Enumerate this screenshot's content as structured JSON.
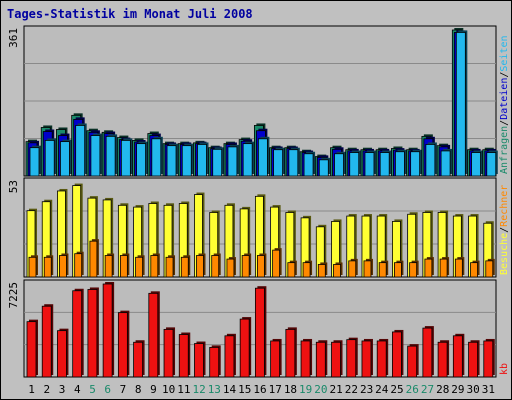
{
  "title": "Tages-Statistik im Monat Juli 2008",
  "colors": {
    "background": "#c0c0c0",
    "plot_bg": "#bcbcbc",
    "grid": "#8a8a8a",
    "title": "#0000a0",
    "anfragen": "#1a8a6a",
    "dateien": "#0000cc",
    "seiten": "#22b8ee",
    "besuche": "#ffff33",
    "rechner": "#ff8800",
    "kb": "#ee1111",
    "weekend_label": "#1a8a6a",
    "weekday_label": "#000000"
  },
  "chart_data": [
    {
      "type": "bar",
      "panel": "top",
      "ymax_label": "361",
      "ylim": [
        0,
        361
      ],
      "legend": [
        {
          "text": "Anfragen",
          "color": "#1a8a6a"
        },
        {
          "text": "Dateien",
          "color": "#0000cc"
        },
        {
          "text": "Seiten",
          "color": "#22b8ee"
        }
      ],
      "series": [
        {
          "name": "Anfragen",
          "color": "#1a8a6a",
          "values": [
            85,
            120,
            115,
            150,
            112,
            108,
            95,
            88,
            105,
            80,
            80,
            82,
            70,
            80,
            90,
            125,
            70,
            70,
            60,
            48,
            70,
            65,
            65,
            65,
            68,
            65,
            98,
            75,
            361,
            65,
            65
          ]
        },
        {
          "name": "Dateien",
          "color": "#0000cc",
          "values": [
            82,
            110,
            100,
            140,
            108,
            105,
            90,
            84,
            100,
            78,
            78,
            80,
            68,
            78,
            86,
            112,
            68,
            68,
            58,
            46,
            66,
            62,
            62,
            62,
            64,
            62,
            92,
            72,
            355,
            62,
            62
          ]
        },
        {
          "name": "Seiten",
          "color": "#22b8ee",
          "values": [
            70,
            88,
            85,
            125,
            100,
            98,
            88,
            80,
            92,
            75,
            75,
            78,
            66,
            72,
            80,
            92,
            65,
            65,
            55,
            40,
            55,
            58,
            58,
            58,
            60,
            60,
            78,
            62,
            355,
            58,
            58
          ]
        }
      ]
    },
    {
      "type": "bar",
      "panel": "middle",
      "ymax_label": "53",
      "ylim": [
        0,
        53
      ],
      "legend": [
        {
          "text": "Besuche",
          "color": "#ffff33"
        },
        {
          "text": "Rechner",
          "color": "#ff8800"
        }
      ],
      "series": [
        {
          "name": "Besuche",
          "color": "#ffff33",
          "values": [
            37,
            42,
            48,
            51,
            44,
            43,
            40,
            39,
            41,
            40,
            41,
            46,
            36,
            40,
            38,
            45,
            39,
            36,
            33,
            28,
            31,
            34,
            34,
            34,
            31,
            35,
            36,
            36,
            34,
            34,
            30
          ]
        },
        {
          "name": "Rechner",
          "color": "#ff8800",
          "values": [
            11,
            11,
            12,
            13,
            20,
            12,
            12,
            11,
            12,
            11,
            11,
            12,
            12,
            10,
            12,
            12,
            15,
            8,
            8,
            7,
            7,
            9,
            9,
            8,
            8,
            8,
            10,
            10,
            10,
            8,
            9
          ]
        }
      ]
    },
    {
      "type": "bar",
      "panel": "bottom",
      "ymax_label": "7225",
      "ylim": [
        0,
        7225
      ],
      "legend": [
        {
          "text": "kb",
          "color": "#ee1111"
        }
      ],
      "series": [
        {
          "name": "kb",
          "color": "#ee1111",
          "values": [
            4300,
            5500,
            3600,
            6700,
            6800,
            7225,
            5000,
            2700,
            6500,
            3700,
            3300,
            2600,
            2300,
            3200,
            4500,
            6900,
            2800,
            3700,
            2800,
            2700,
            2700,
            2900,
            2800,
            2800,
            3500,
            2400,
            3800,
            2700,
            3200,
            2700,
            2800
          ]
        }
      ]
    }
  ],
  "x_labels": [
    {
      "text": "1",
      "weekend": false
    },
    {
      "text": "2",
      "weekend": false
    },
    {
      "text": "3",
      "weekend": false
    },
    {
      "text": "4",
      "weekend": false
    },
    {
      "text": "5",
      "weekend": true
    },
    {
      "text": "6",
      "weekend": true
    },
    {
      "text": "7",
      "weekend": false
    },
    {
      "text": "8",
      "weekend": false
    },
    {
      "text": "9",
      "weekend": false
    },
    {
      "text": "10",
      "weekend": false
    },
    {
      "text": "11",
      "weekend": false
    },
    {
      "text": "12",
      "weekend": true
    },
    {
      "text": "13",
      "weekend": true
    },
    {
      "text": "14",
      "weekend": false
    },
    {
      "text": "15",
      "weekend": false
    },
    {
      "text": "16",
      "weekend": false
    },
    {
      "text": "17",
      "weekend": false
    },
    {
      "text": "18",
      "weekend": false
    },
    {
      "text": "19",
      "weekend": true
    },
    {
      "text": "20",
      "weekend": true
    },
    {
      "text": "21",
      "weekend": false
    },
    {
      "text": "22",
      "weekend": false
    },
    {
      "text": "23",
      "weekend": false
    },
    {
      "text": "24",
      "weekend": false
    },
    {
      "text": "25",
      "weekend": false
    },
    {
      "text": "26",
      "weekend": true
    },
    {
      "text": "27",
      "weekend": true
    },
    {
      "text": "28",
      "weekend": false
    },
    {
      "text": "29",
      "weekend": false
    },
    {
      "text": "30",
      "weekend": false
    },
    {
      "text": "31",
      "weekend": false
    }
  ]
}
